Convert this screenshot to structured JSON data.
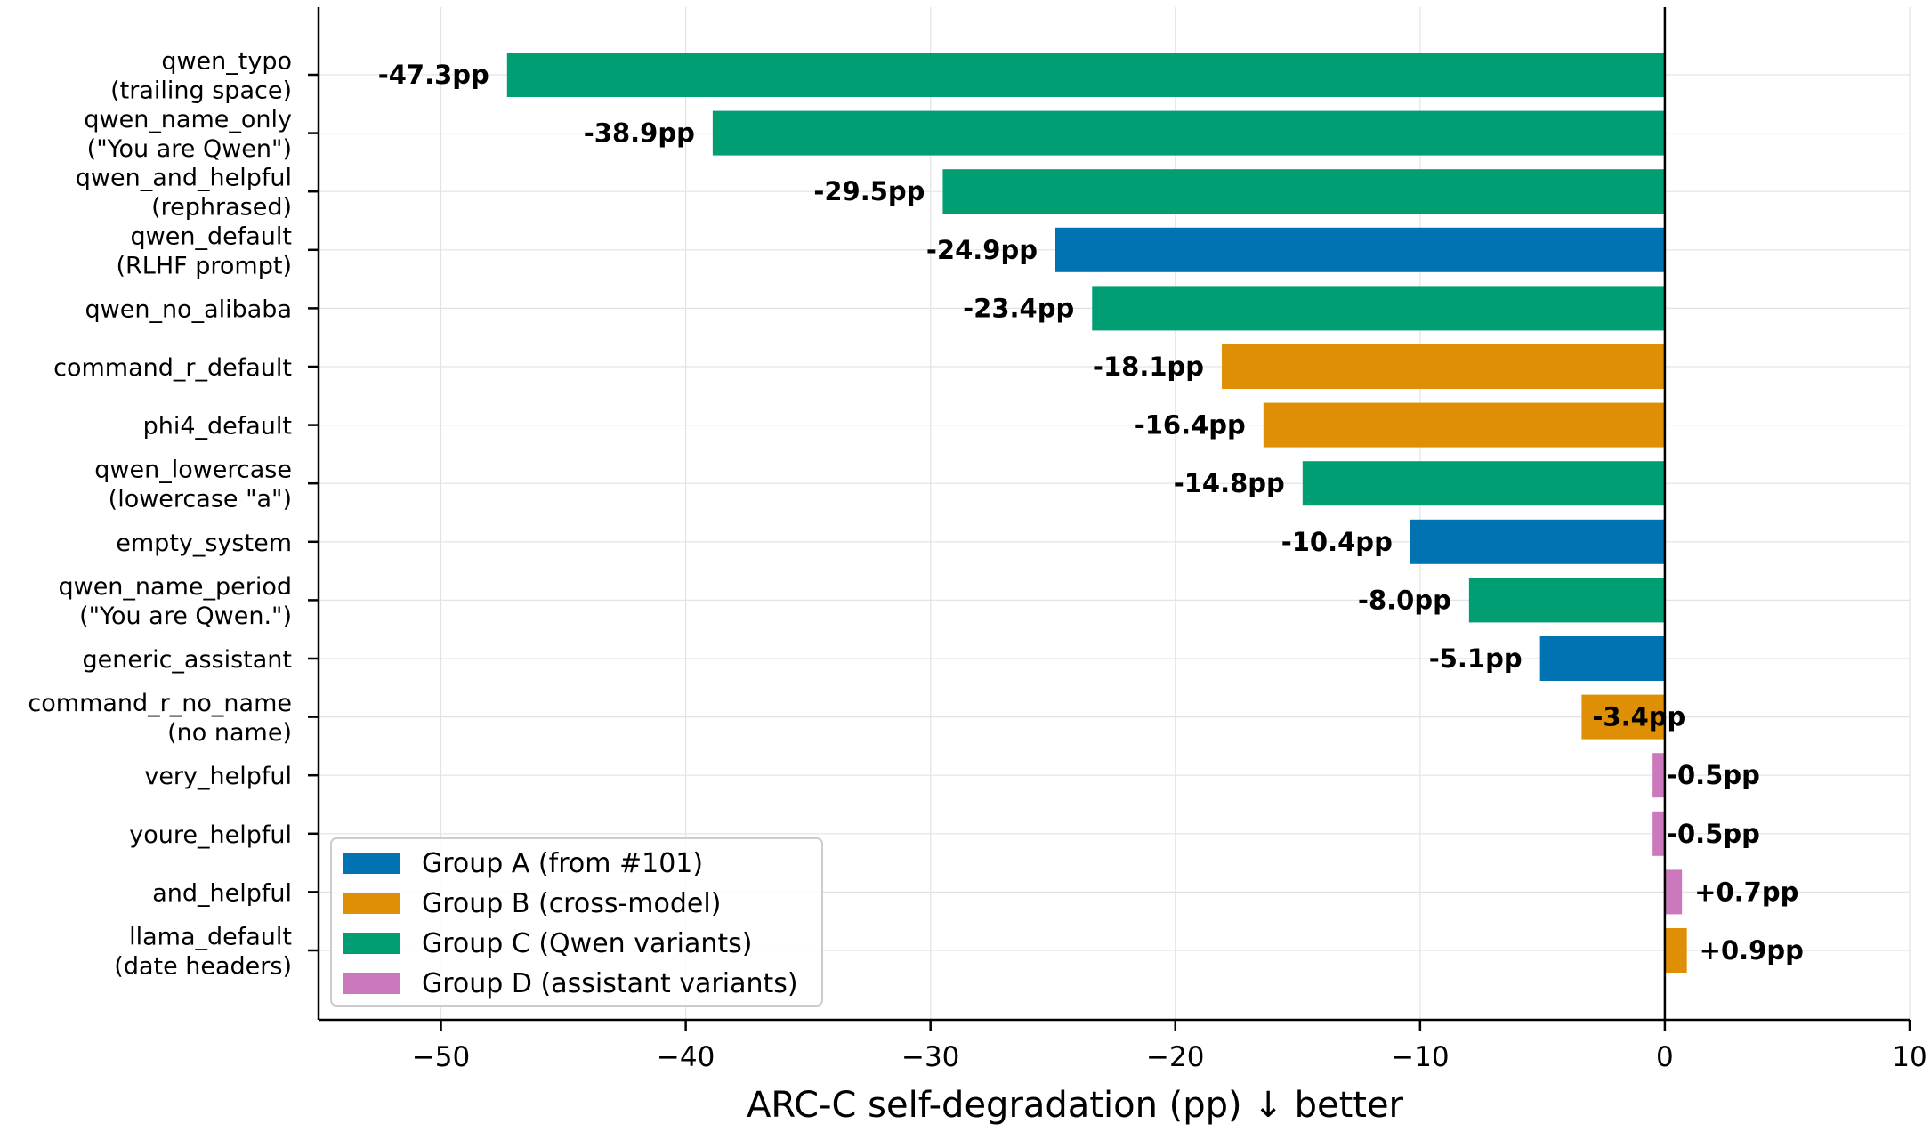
{
  "chart_data": {
    "type": "bar",
    "orientation": "horizontal",
    "title": "",
    "xlabel": "ARC-C self-degradation (pp) ↓ better",
    "ylabel": "",
    "xlim": [
      -55,
      10
    ],
    "xticks": [
      -50,
      -40,
      -30,
      -20,
      -10,
      0,
      10
    ],
    "xtick_labels": [
      "−50",
      "−40",
      "−30",
      "−20",
      "−10",
      "0",
      "10"
    ],
    "grid": true,
    "legend_position": "bottom-left",
    "groups": [
      {
        "key": "A",
        "name": "Group A (from #101)",
        "color": "#0173b2"
      },
      {
        "key": "B",
        "name": "Group B (cross-model)",
        "color": "#de8f05"
      },
      {
        "key": "C",
        "name": "Group C (Qwen variants)",
        "color": "#029e73"
      },
      {
        "key": "D",
        "name": "Group D (assistant variants)",
        "color": "#cc78bc"
      }
    ],
    "bars": [
      {
        "label": [
          "qwen_typo",
          "(trailing space)"
        ],
        "value": -47.3,
        "value_label": "-47.3pp",
        "group": "C"
      },
      {
        "label": [
          "qwen_name_only",
          "(\"You are Qwen\")"
        ],
        "value": -38.9,
        "value_label": "-38.9pp",
        "group": "C"
      },
      {
        "label": [
          "qwen_and_helpful",
          "(rephrased)"
        ],
        "value": -29.5,
        "value_label": "-29.5pp",
        "group": "C"
      },
      {
        "label": [
          "qwen_default",
          "(RLHF prompt)"
        ],
        "value": -24.9,
        "value_label": "-24.9pp",
        "group": "A"
      },
      {
        "label": [
          "qwen_no_alibaba"
        ],
        "value": -23.4,
        "value_label": "-23.4pp",
        "group": "C"
      },
      {
        "label": [
          "command_r_default"
        ],
        "value": -18.1,
        "value_label": "-18.1pp",
        "group": "B"
      },
      {
        "label": [
          "phi4_default"
        ],
        "value": -16.4,
        "value_label": "-16.4pp",
        "group": "B"
      },
      {
        "label": [
          "qwen_lowercase",
          "(lowercase \"a\")"
        ],
        "value": -14.8,
        "value_label": "-14.8pp",
        "group": "C"
      },
      {
        "label": [
          "empty_system"
        ],
        "value": -10.4,
        "value_label": "-10.4pp",
        "group": "A"
      },
      {
        "label": [
          "qwen_name_period",
          "(\"You are Qwen.\")"
        ],
        "value": -8.0,
        "value_label": "-8.0pp",
        "group": "C"
      },
      {
        "label": [
          "generic_assistant"
        ],
        "value": -5.1,
        "value_label": "-5.1pp",
        "group": "A"
      },
      {
        "label": [
          "command_r_no_name",
          "(no name)"
        ],
        "value": -3.4,
        "value_label": "-3.4pp",
        "group": "B"
      },
      {
        "label": [
          "very_helpful"
        ],
        "value": -0.5,
        "value_label": "-0.5pp",
        "group": "D"
      },
      {
        "label": [
          "youre_helpful"
        ],
        "value": -0.5,
        "value_label": "-0.5pp",
        "group": "D"
      },
      {
        "label": [
          "and_helpful"
        ],
        "value": 0.7,
        "value_label": "+0.7pp",
        "group": "D"
      },
      {
        "label": [
          "llama_default",
          "(date headers)"
        ],
        "value": 0.9,
        "value_label": "+0.9pp",
        "group": "B"
      }
    ]
  }
}
